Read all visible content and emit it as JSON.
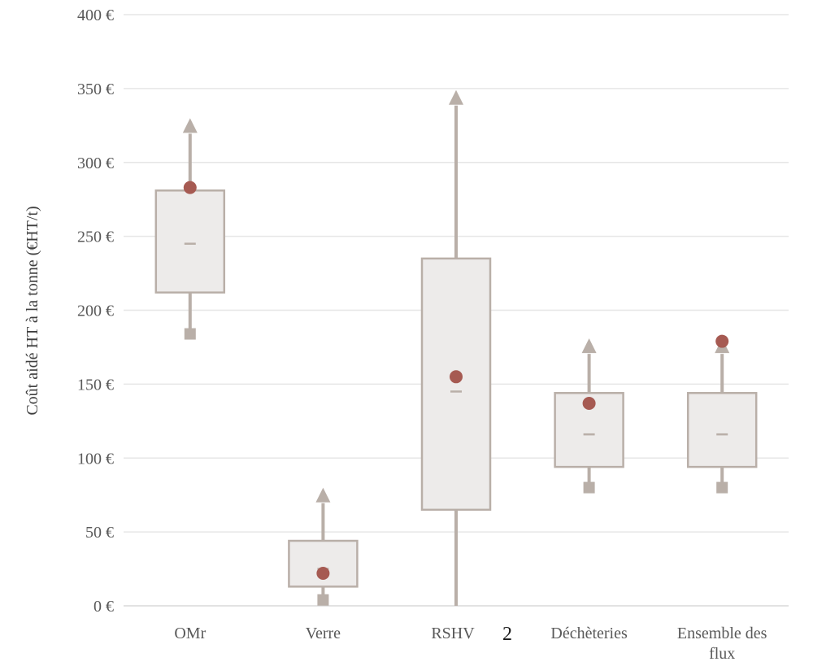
{
  "chart_data": {
    "type": "box",
    "ylabel": "Coût aidé HT à la tonne  (€HT/t)",
    "ylim": [
      0,
      400
    ],
    "yticks": [
      0,
      50,
      100,
      150,
      200,
      250,
      300,
      350,
      400
    ],
    "ytick_labels": [
      "0 €",
      "50 €",
      "100 €",
      "150 €",
      "200 €",
      "250 €",
      "300 €",
      "350 €",
      "400 €"
    ],
    "grid": true,
    "categories": [
      "OMr",
      "Verre",
      "RSHV",
      "Déchèteries",
      "Ensemble des flux"
    ],
    "category_label_lines": [
      [
        "OMr"
      ],
      [
        "Verre"
      ],
      [
        "RSHV"
      ],
      [
        "Déchèteries"
      ],
      [
        "Ensemble des",
        "flux"
      ]
    ],
    "footnote_marker": "2",
    "series": [
      {
        "category": "OMr",
        "min": 184,
        "q1": 212,
        "median": 245,
        "q3": 281,
        "max": 325,
        "mean": 283
      },
      {
        "category": "Verre",
        "min": 4,
        "q1": 13,
        "median": 25,
        "q3": 44,
        "max": 75,
        "mean": 22
      },
      {
        "category": "RSHV",
        "min": 0,
        "q1": 65,
        "median": 145,
        "q3": 235,
        "max": 344,
        "mean": 155
      },
      {
        "category": "Déchèteries",
        "min": 80,
        "q1": 94,
        "median": 116,
        "q3": 144,
        "max": 176,
        "mean": 137
      },
      {
        "category": "Ensemble des flux",
        "min": 80,
        "q1": 94,
        "median": 116,
        "q3": 144,
        "max": 176,
        "mean": 179
      }
    ],
    "colors": {
      "box_fill": "#EDEBEA",
      "box_stroke": "#B9AFA8",
      "whisker": "#B9AFA8",
      "median": "#B9AFA8",
      "mean_marker": "#A65A52",
      "grid": "#E6E6E6"
    }
  }
}
